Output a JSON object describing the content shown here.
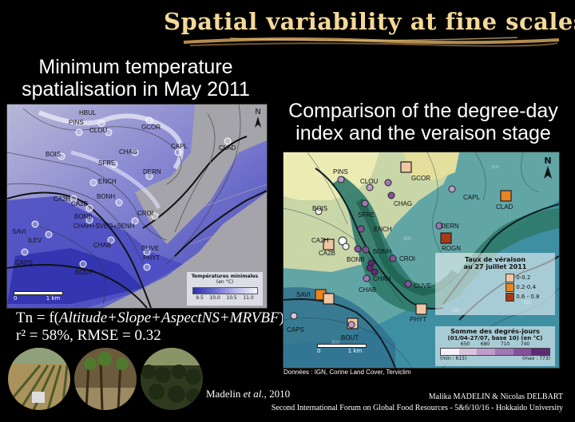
{
  "slide": {
    "title": "Spatial variability at fine scales",
    "left_subtitle": [
      "Minimum temperature",
      "spatialisation in May 2011"
    ],
    "right_subtitle": [
      "Comparison of the degree-day",
      "index and the veraison stage"
    ],
    "formula": {
      "prefix": "Tn = f(",
      "terms": "Altitude+Slope+AspectNS+MRVBF",
      "suffix": ")",
      "stats": "r² = 58%, RMSE = 0.32"
    },
    "citation": {
      "authors": "Madelin ",
      "etal": "et al.",
      "year": ", 2010"
    },
    "footer": {
      "authors": "Malika MADELIN & Nicolas DELBART",
      "event": "Second International Forum on Global Food Resources - 5&6/10/16 - Hokkaido University"
    }
  },
  "left_map": {
    "north": "N",
    "scale_labels": [
      "0",
      "1 km"
    ],
    "legend": {
      "title": "Températures minimales",
      "unit": "(en °C)",
      "ticks": [
        "9.5",
        "10.0",
        "10.5",
        "11.0"
      ]
    },
    "places": [
      "HBUL",
      "PINS",
      "CLOU",
      "BOIS",
      "SFRE",
      "CHAG",
      "CAPL",
      "CLAD",
      "GCOR",
      "ENCH",
      "DERN",
      "CA2H",
      "CA2B",
      "BONH",
      "BONB",
      "CHAH+SVEG+SENH",
      "CROI",
      "CUVE",
      "SAVI",
      "ILEV",
      "CHAB",
      "PHYT",
      "CAPS",
      "BOUT"
    ]
  },
  "right_map": {
    "north": "N",
    "scale_labels": [
      "0",
      "1 km"
    ],
    "source": "Données : IGN, Corine Land Cover, Terviclim",
    "legend1": {
      "title": "Taux de véraison",
      "subtitle": "au 27 juillet 2011",
      "classes": [
        "0-0.2",
        "0.2-0.4",
        "0.6 - 0.8"
      ],
      "colors": [
        "#f1c6a3",
        "#e8851e",
        "#a53a17"
      ]
    },
    "legend2": {
      "title": "Somme des degrés-jours",
      "subtitle": "(01/04-27/07, base 10) (en °C)",
      "ticks": [
        "650",
        "680",
        "710",
        "740"
      ],
      "min": "(min : 615)",
      "max": "(max : 773)",
      "colors": [
        "#f4f2f6",
        "#d8c4de",
        "#c09ccc",
        "#a277b5",
        "#84519a",
        "#5f2a74"
      ]
    },
    "places": [
      "PINS",
      "GCOR",
      "CLOU",
      "CHAG",
      "CAPL",
      "CLAD",
      "BOIS",
      "SFRE",
      "CA2H",
      "CA2B",
      "ENCH",
      "DERN",
      "BONB",
      "BONH",
      "ROGN",
      "CROI",
      "CHAH",
      "CUVE",
      "SAVI",
      "CHAB",
      "PHYT",
      "CAPS",
      "BOUT"
    ]
  },
  "photos": [
    "vineyard-rows-photo",
    "vine-stocks-photo",
    "forest-photo"
  ]
}
